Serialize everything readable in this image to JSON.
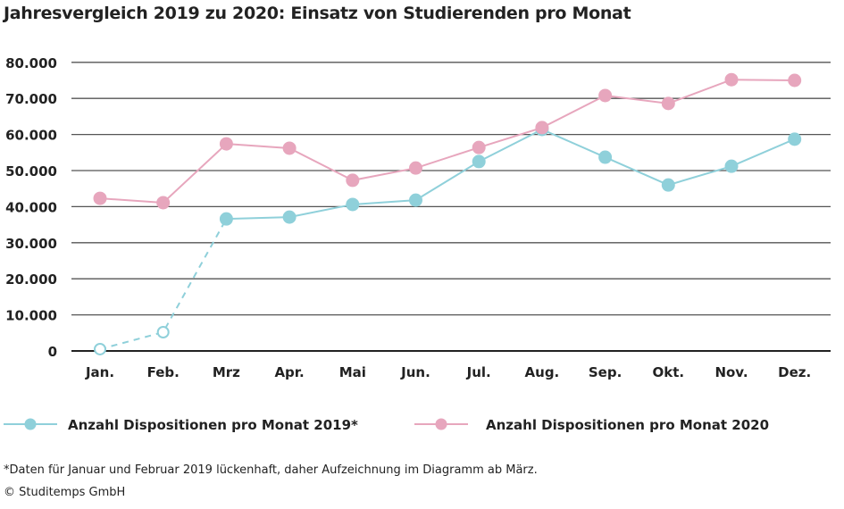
{
  "chart_data": {
    "type": "line",
    "title": "Jahresvergleich 2019 zu 2020: Einsatz von Studierenden pro Monat",
    "categories": [
      "Jan.",
      "Feb.",
      "Mrz",
      "Apr.",
      "Mai",
      "Jun.",
      "Jul.",
      "Aug.",
      "Sep.",
      "Okt.",
      "Nov.",
      "Dez."
    ],
    "yticks": [
      "0",
      "10.000",
      "20.000",
      "30.000",
      "40.000",
      "50.000",
      "60.000",
      "70.000",
      "80.000"
    ],
    "ylim": [
      0,
      80000
    ],
    "grid": true,
    "legend_placement": "bottom",
    "series": [
      {
        "name": "Anzahl Dispositionen pro Monat 2019*",
        "color": "#8fd0da",
        "values": [
          500,
          5200,
          36600,
          37100,
          40600,
          41800,
          52500,
          61400,
          53700,
          46000,
          51200,
          58700
        ],
        "incomplete_months": [
          "Jan.",
          "Feb."
        ]
      },
      {
        "name": "Anzahl Dispositionen pro Monat 2020",
        "color": "#e7a6bd",
        "values": [
          42300,
          41100,
          57400,
          56200,
          47300,
          50700,
          56400,
          61900,
          70800,
          68600,
          75200,
          75000
        ]
      }
    ]
  },
  "footnote": "*Daten für Januar und Februar 2019 lückenhaft, daher Aufzeichnung im Diagramm ab März.",
  "copyright": "© Studitemps GmbH"
}
